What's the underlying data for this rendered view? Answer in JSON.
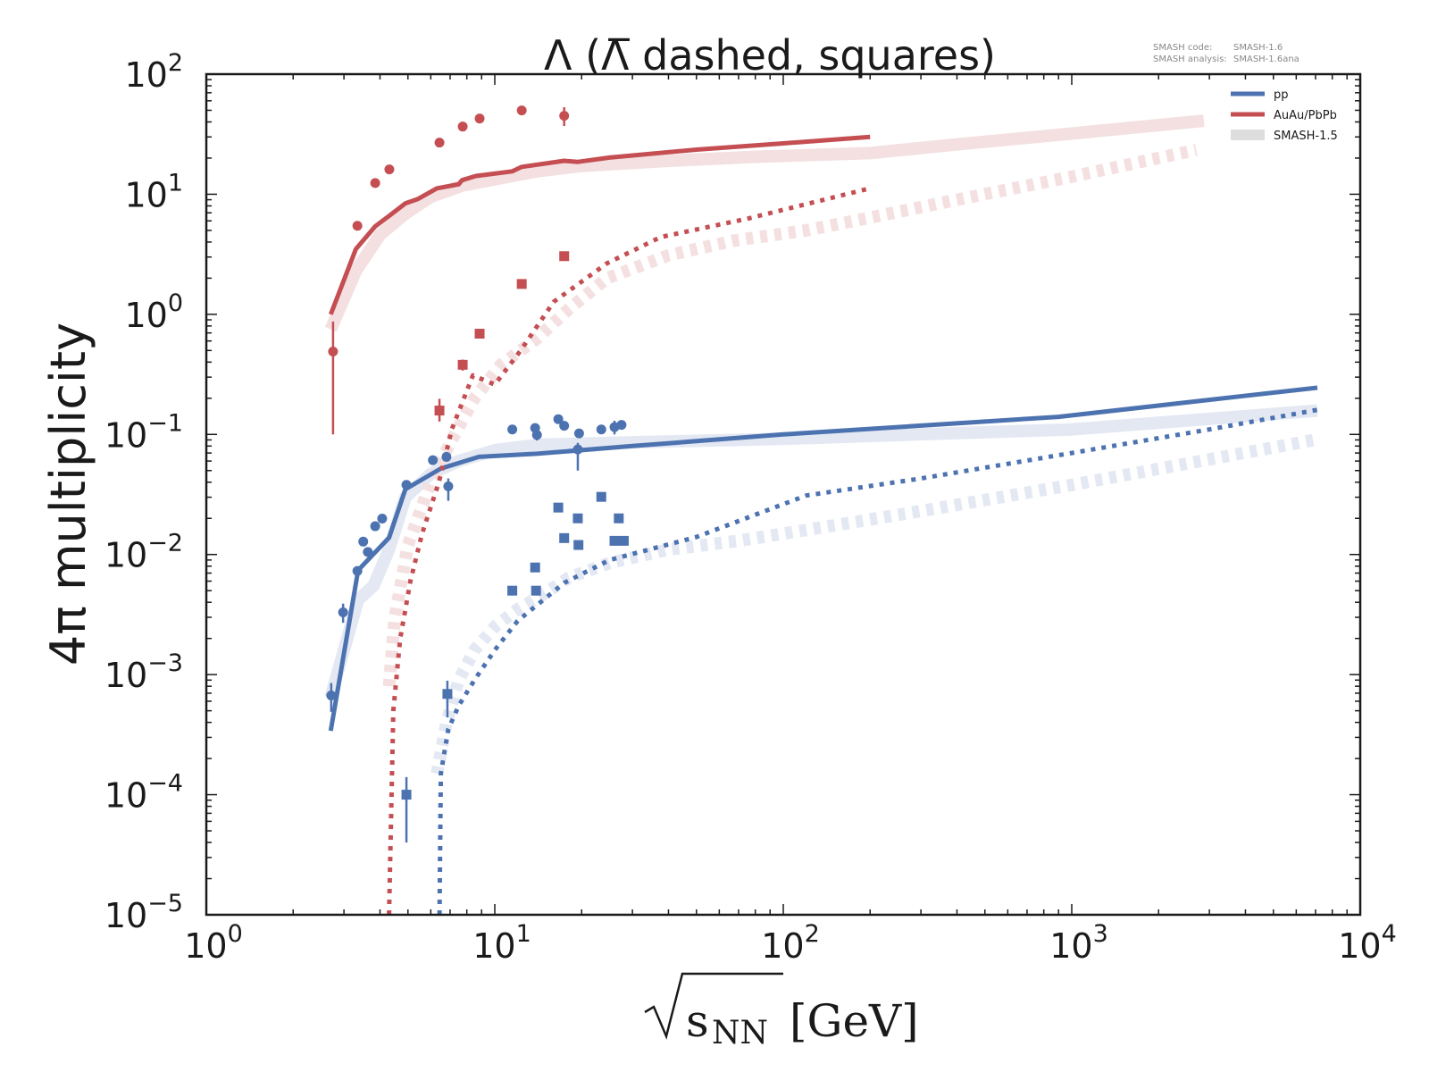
{
  "chart_data": {
    "type": "scatter",
    "title": "Λ (Λ̅ dashed, squares)",
    "xlabel": "√s_NN [GeV]",
    "xlabel_parts": {
      "radicand": "s",
      "subscript": "NN",
      "unit": "[GeV]"
    },
    "ylabel": "4π multiplicity",
    "xscale": "log",
    "yscale": "log",
    "xlim": [
      1,
      10000
    ],
    "ylim": [
      1e-05,
      100
    ],
    "x_ticks": [
      {
        "base": "10",
        "exp": "0",
        "value": 1
      },
      {
        "base": "10",
        "exp": "1",
        "value": 10
      },
      {
        "base": "10",
        "exp": "2",
        "value": 100
      },
      {
        "base": "10",
        "exp": "3",
        "value": 1000
      },
      {
        "base": "10",
        "exp": "4",
        "value": 10000
      }
    ],
    "y_ticks": [
      {
        "base": "10",
        "exp": "2",
        "value": 100
      },
      {
        "base": "10",
        "exp": "1",
        "value": 10
      },
      {
        "base": "10",
        "exp": "0",
        "value": 1
      },
      {
        "base": "10",
        "exp": "−1",
        "value": 0.1
      },
      {
        "base": "10",
        "exp": "−2",
        "value": 0.01
      },
      {
        "base": "10",
        "exp": "−3",
        "value": 0.001
      },
      {
        "base": "10",
        "exp": "−4",
        "value": 0.0001
      },
      {
        "base": "10",
        "exp": "−5",
        "value": 1e-05
      }
    ],
    "grid": false,
    "legend_position": "top-right",
    "legend": [
      {
        "label": "pp",
        "color": "#4c72b0",
        "style": "line"
      },
      {
        "label": "AuAu/PbPb",
        "color": "#c44e52",
        "style": "line"
      },
      {
        "label": "SMASH-1.5",
        "color": "#dddddd",
        "style": "band"
      }
    ],
    "annotation": {
      "code_label": "SMASH code:",
      "code_value": "SMASH-1.6",
      "analysis_label": "SMASH analysis:",
      "analysis_value": "SMASH-1.6ana"
    },
    "colors": {
      "pp": "#4c72b0",
      "AA": "#c44e52",
      "pp_old": "#e3e8f3",
      "AA_old": "#f4e0e1"
    },
    "series": [
      {
        "name": "AuAu/PbPb SMASH-1.5 Λ",
        "kind": "old-solid",
        "color": "#f4e0e1",
        "x": [
          2.7,
          3.3,
          4.0,
          4.9,
          6.0,
          7.7,
          10,
          14,
          20,
          40,
          80,
          200,
          400,
          1000,
          2870
        ],
        "y": [
          0.75,
          2.3,
          4.6,
          6.9,
          9.5,
          11.8,
          13.3,
          15.5,
          17.2,
          19.0,
          20.5,
          22.0,
          26.0,
          32.0,
          41.0
        ]
      },
      {
        "name": "AuAu/PbPb SMASH-1.5 anti-Λ",
        "kind": "old-dashed",
        "color": "#f4e0e1",
        "x": [
          4.3,
          4.5,
          5.0,
          6.0,
          7.0,
          8.5,
          10.5,
          13.9,
          18,
          24.5,
          40,
          67,
          120,
          182,
          400,
          1000,
          2700
        ],
        "y": [
          0.0008,
          0.003,
          0.012,
          0.04,
          0.085,
          0.2,
          0.38,
          0.62,
          1.1,
          2.0,
          3.1,
          4.1,
          5.0,
          6.1,
          9.0,
          14.0,
          23.4
        ]
      },
      {
        "name": "pp SMASH-1.5 Λ",
        "kind": "old-solid",
        "color": "#e3e8f3",
        "x": [
          2.7,
          3.36,
          3.8,
          4.3,
          4.9,
          6.0,
          7.5,
          10,
          14,
          30,
          100,
          1000,
          7100
        ],
        "y": [
          0.00065,
          0.0042,
          0.0055,
          0.011,
          0.03,
          0.047,
          0.06,
          0.074,
          0.082,
          0.086,
          0.092,
          0.11,
          0.158
        ]
      },
      {
        "name": "pp SMASH-1.5 anti-Λ",
        "kind": "old-dashed",
        "color": "#e3e8f3",
        "x": [
          6.3,
          6.8,
          7.5,
          8.5,
          10,
          12,
          15,
          18,
          25,
          40,
          70,
          120,
          300,
          1000,
          7100
        ],
        "y": [
          0.00015,
          0.0004,
          0.0009,
          0.0016,
          0.0025,
          0.0035,
          0.0048,
          0.0064,
          0.0085,
          0.011,
          0.013,
          0.016,
          0.023,
          0.038,
          0.091
        ]
      },
      {
        "name": "AuAu/PbPb SMASH-1.6 Λ",
        "kind": "solid",
        "color": "#c44e52",
        "x": [
          2.7,
          3.3,
          3.85,
          4.3,
          4.9,
          5.4,
          6.3,
          7.5,
          7.7,
          8.6,
          11.5,
          12.4,
          17.4,
          19.4,
          25,
          50,
          100,
          200
        ],
        "y": [
          1.0,
          3.5,
          5.4,
          6.6,
          8.4,
          9.1,
          11.2,
          12.1,
          13.1,
          14.2,
          15.5,
          16.9,
          19.0,
          18.6,
          20.2,
          23.5,
          26.5,
          30.0
        ]
      },
      {
        "name": "AuAu/PbPb SMASH-1.6 anti-Λ",
        "kind": "dashed",
        "color": "#c44e52",
        "x": [
          4.3,
          4.45,
          4.7,
          5.1,
          5.6,
          6.4,
          7.1,
          8.4,
          10,
          12.3,
          16,
          24.5,
          37.6,
          76,
          200
        ],
        "y": [
          1e-05,
          0.0005,
          0.002,
          0.006,
          0.015,
          0.04,
          0.111,
          0.31,
          0.26,
          0.5,
          1.27,
          2.66,
          4.4,
          6.3,
          11.2
        ]
      },
      {
        "name": "pp SMASH-1.6 Λ",
        "kind": "solid",
        "color": "#4c72b0",
        "x": [
          2.7,
          3.36,
          4.3,
          4.9,
          6.5,
          8.8,
          14,
          30,
          100,
          900,
          7100
        ],
        "y": [
          0.00034,
          0.0074,
          0.0138,
          0.035,
          0.052,
          0.065,
          0.069,
          0.08,
          0.1,
          0.14,
          0.245
        ]
      },
      {
        "name": "pp SMASH-1.6 anti-Λ",
        "kind": "dashed",
        "color": "#4c72b0",
        "x": [
          6.43,
          6.5,
          6.9,
          7.5,
          8.5,
          10,
          12,
          17.4,
          25,
          50,
          120,
          300,
          1000,
          3000,
          7100
        ],
        "y": [
          1e-05,
          0.00015,
          0.00035,
          0.00055,
          0.0009,
          0.0016,
          0.0028,
          0.0058,
          0.009,
          0.014,
          0.031,
          0.043,
          0.07,
          0.11,
          0.16
        ]
      },
      {
        "name": "AuAu/PbPb data Λ",
        "kind": "circles",
        "color": "#c44e52",
        "x": [
          2.75,
          3.34,
          3.85,
          4.31,
          6.43,
          7.74,
          8.86,
          12.4,
          17.4
        ],
        "y": [
          0.49,
          5.46,
          12.4,
          16.1,
          26.9,
          36.6,
          42.7,
          49.9,
          45.0
        ],
        "yerr_low": [
          0.39,
          0.3,
          0.5,
          0.6,
          1.2,
          1.5,
          2.0,
          3.0,
          8.0
        ],
        "yerr_high": [
          0.38,
          0.3,
          0.5,
          0.6,
          1.2,
          1.5,
          2.0,
          3.0,
          8.0
        ]
      },
      {
        "name": "AuAu/PbPb data anti-Λ",
        "kind": "squares",
        "color": "#c44e52",
        "x": [
          6.43,
          7.74,
          8.86,
          12.4,
          17.4
        ],
        "y": [
          0.158,
          0.38,
          0.69,
          1.79,
          3.05
        ],
        "yerr_low": [
          0.03,
          0.04,
          0.05,
          0.1,
          0.15
        ],
        "yerr_high": [
          0.04,
          0.04,
          0.05,
          0.1,
          0.15
        ]
      },
      {
        "name": "pp data Λ",
        "kind": "circles",
        "color": "#4c72b0",
        "x": [
          2.71,
          2.98,
          3.34,
          3.5,
          3.63,
          3.85,
          4.07,
          4.94,
          6.1,
          6.8,
          6.9,
          11.5,
          13.8,
          14.0,
          16.6,
          17.4,
          19.6,
          19.4,
          23.4,
          26.0,
          27.5
        ],
        "y": [
          0.00067,
          0.0033,
          0.0073,
          0.0128,
          0.0105,
          0.0172,
          0.0199,
          0.038,
          0.061,
          0.065,
          0.037,
          0.11,
          0.113,
          0.099,
          0.134,
          0.118,
          0.102,
          0.075,
          0.11,
          0.115,
          0.12
        ],
        "yerr_low": [
          0.00018,
          0.0006,
          0.0004,
          0.0005,
          0.0005,
          0.0006,
          0.0007,
          0.003,
          0.003,
          0.003,
          0.009,
          0.004,
          0.004,
          0.01,
          0.004,
          0.004,
          0.004,
          0.025,
          0.004,
          0.015,
          0.005
        ],
        "yerr_high": [
          0.00018,
          0.0006,
          0.0004,
          0.0005,
          0.0005,
          0.0006,
          0.0007,
          0.003,
          0.003,
          0.003,
          0.006,
          0.004,
          0.004,
          0.006,
          0.004,
          0.004,
          0.004,
          0.01,
          0.004,
          0.015,
          0.005
        ]
      },
      {
        "name": "pp data anti-Λ",
        "kind": "squares",
        "color": "#4c72b0",
        "x": [
          4.94,
          6.85,
          11.5,
          13.8,
          13.9,
          16.6,
          17.4,
          19.4,
          19.5,
          23.4,
          26.0,
          28.0,
          26.9
        ],
        "y": [
          0.0001,
          0.00069,
          0.005,
          0.0078,
          0.005,
          0.0246,
          0.0137,
          0.02,
          0.012,
          0.0302,
          0.013,
          0.013,
          0.02
        ],
        "yerr_low": [
          6e-05,
          0.00025,
          0.0003,
          0.0004,
          0.0003,
          0.001,
          0.0008,
          0.001,
          0.0007,
          0.0015,
          0.0007,
          0.0007,
          0.001
        ],
        "yerr_high": [
          4e-05,
          0.0002,
          0.0003,
          0.0004,
          0.0003,
          0.001,
          0.0008,
          0.001,
          0.0007,
          0.0015,
          0.0007,
          0.0007,
          0.001
        ]
      }
    ]
  }
}
